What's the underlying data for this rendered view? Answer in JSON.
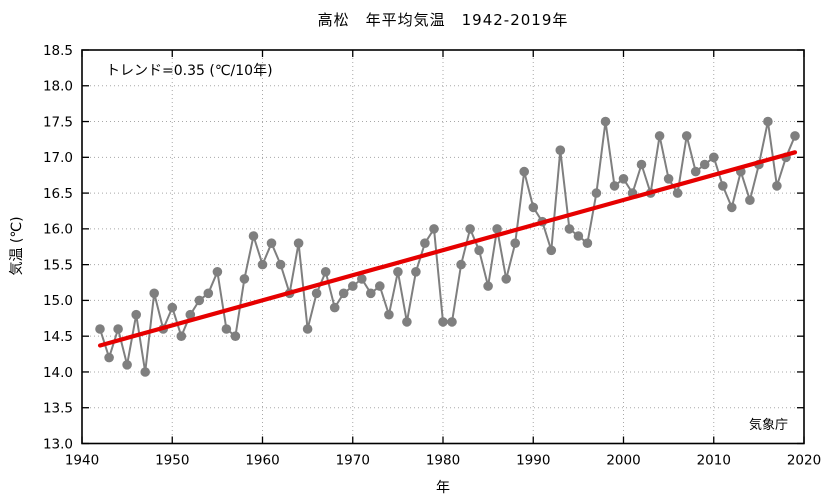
{
  "header": {
    "title": "高松　年平均気温　1942-2019年"
  },
  "annotations": {
    "trend_label": "トレンド=0.35 (℃/10年)",
    "source_label": "気象庁"
  },
  "axes": {
    "ylabel": "気温 (℃)",
    "xlabel": "年"
  },
  "chart_data": {
    "type": "line",
    "title": "高松　年平均気温　1942-2019年",
    "xlabel": "年",
    "ylabel": "気温 (℃)",
    "series_name": "年平均気温",
    "xlim": [
      1940,
      2020
    ],
    "ylim": [
      13.0,
      18.5
    ],
    "x_ticks": [
      "1940",
      "1950",
      "1960",
      "1970",
      "1980",
      "1990",
      "2000",
      "2010",
      "2020"
    ],
    "y_ticks": [
      "13.0",
      "13.5",
      "14.0",
      "14.5",
      "15.0",
      "15.5",
      "16.0",
      "16.5",
      "17.0",
      "17.5",
      "18.0",
      "18.5"
    ],
    "grid": true,
    "legend": "none",
    "start_year": 1942,
    "values": [
      14.6,
      14.2,
      14.6,
      14.1,
      14.8,
      14.0,
      15.1,
      14.6,
      14.9,
      14.5,
      14.8,
      15.0,
      15.1,
      15.4,
      14.6,
      14.5,
      15.3,
      15.9,
      15.5,
      15.8,
      15.5,
      15.1,
      15.8,
      14.6,
      15.1,
      15.4,
      14.9,
      15.1,
      15.2,
      15.3,
      15.1,
      15.2,
      14.8,
      15.4,
      14.7,
      15.4,
      15.8,
      16.0,
      14.7,
      14.7,
      15.5,
      16.0,
      15.7,
      15.2,
      16.0,
      15.3,
      15.8,
      16.8,
      16.3,
      16.1,
      15.7,
      17.1,
      16.0,
      15.9,
      15.8,
      16.5,
      17.5,
      16.6,
      16.7,
      16.5,
      16.9,
      16.5,
      17.3,
      16.7,
      16.5,
      17.3,
      16.8,
      16.9,
      17.0,
      16.6,
      16.3,
      16.8,
      16.4,
      16.9,
      17.5,
      16.6,
      17.0,
      17.3
    ],
    "trend": {
      "per_decade": 0.35,
      "start": {
        "x": 1942,
        "y": 14.37
      },
      "end": {
        "x": 2019,
        "y": 17.07
      }
    },
    "series_color": "#7f7f7f",
    "trend_color": "#e60000",
    "grid_color": "#a8a8a8",
    "axis_color": "#000000",
    "marker_radius": 4.8
  }
}
